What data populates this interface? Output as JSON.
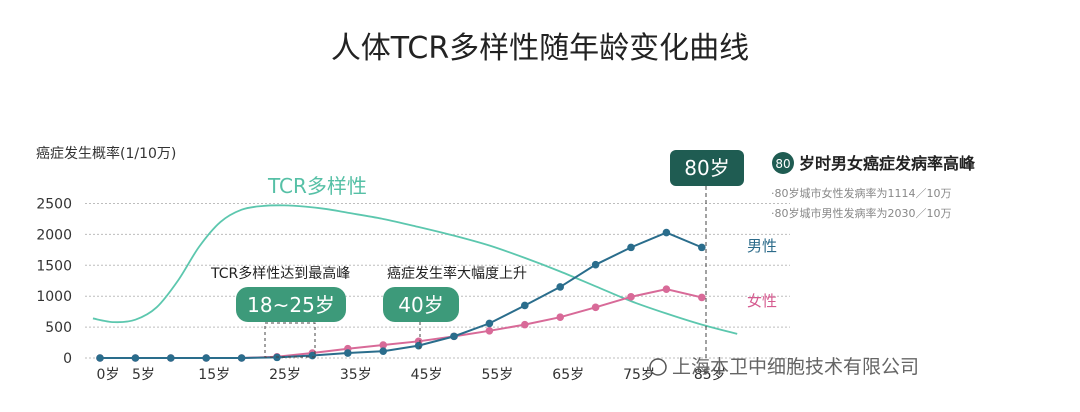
{
  "colors": {
    "tcr": "#5cc7ae",
    "male": "#2a6d8c",
    "female": "#d86a98",
    "pill_green": "#3d9a7a",
    "pill_dark": "#1f5c52",
    "badge_green": "#1f5c52"
  },
  "chart_data": {
    "type": "line",
    "title": "人体TCR多样性随年龄变化曲线",
    "ylabel": "癌症发生概率(1/10万)",
    "xlabel": "",
    "ylim": [
      0,
      2750
    ],
    "yticks": [
      0,
      500,
      1000,
      1500,
      2000,
      2500
    ],
    "ytick_labels": [
      "0",
      "500",
      "1000",
      "1500",
      "2000",
      "2500"
    ],
    "x_ticks": [
      0,
      5,
      15,
      25,
      35,
      45,
      55,
      65,
      75,
      85
    ],
    "x_tick_labels": [
      "0岁",
      "5岁",
      "15岁",
      "25岁",
      "35岁",
      "45岁",
      "55岁",
      "65岁",
      "75岁",
      "85岁"
    ],
    "series": [
      {
        "name": "男性",
        "x": [
          0,
          5,
          10,
          15,
          20,
          25,
          30,
          35,
          40,
          45,
          50,
          55,
          60,
          65,
          70,
          75,
          80,
          85
        ],
        "values": [
          0,
          0,
          0,
          0,
          0,
          10,
          40,
          80,
          110,
          200,
          350,
          560,
          850,
          1150,
          1510,
          1790,
          2030,
          1790
        ]
      },
      {
        "name": "女性",
        "x": [
          0,
          5,
          10,
          15,
          20,
          25,
          30,
          35,
          40,
          45,
          50,
          55,
          60,
          65,
          70,
          75,
          80,
          85
        ],
        "values": [
          0,
          0,
          0,
          0,
          0,
          20,
          80,
          150,
          210,
          270,
          350,
          440,
          540,
          660,
          820,
          990,
          1114,
          980
        ]
      },
      {
        "name": "TCR多样性",
        "x": [
          -1,
          2,
          5,
          8,
          11,
          14,
          17,
          20,
          23,
          26,
          29,
          32,
          35,
          40,
          45,
          50,
          55,
          60,
          65,
          70,
          75,
          80,
          85,
          90
        ],
        "values": [
          640,
          580,
          620,
          820,
          1250,
          1800,
          2200,
          2400,
          2460,
          2470,
          2450,
          2410,
          2350,
          2250,
          2120,
          1980,
          1820,
          1620,
          1400,
          1160,
          920,
          720,
          540,
          390
        ]
      }
    ],
    "annotations": {
      "tcr_label": "TCR多样性",
      "peak_text": "TCR多样性达到最高峰",
      "peak_range": "18~25岁",
      "rise_text": "癌症发生率大幅度上升",
      "rise_age": "40岁",
      "incidence_peak_age": "80岁",
      "incidence_peak_badge": "80",
      "incidence_peak_title": "岁时男女癌症发病率高峰",
      "incidence_female": "·80岁城市女性发病率为1114／10万",
      "incidence_male": "·80岁城市男性发病率为2030／10万"
    }
  },
  "watermark": "上海本卫中细胞技术有限公司"
}
